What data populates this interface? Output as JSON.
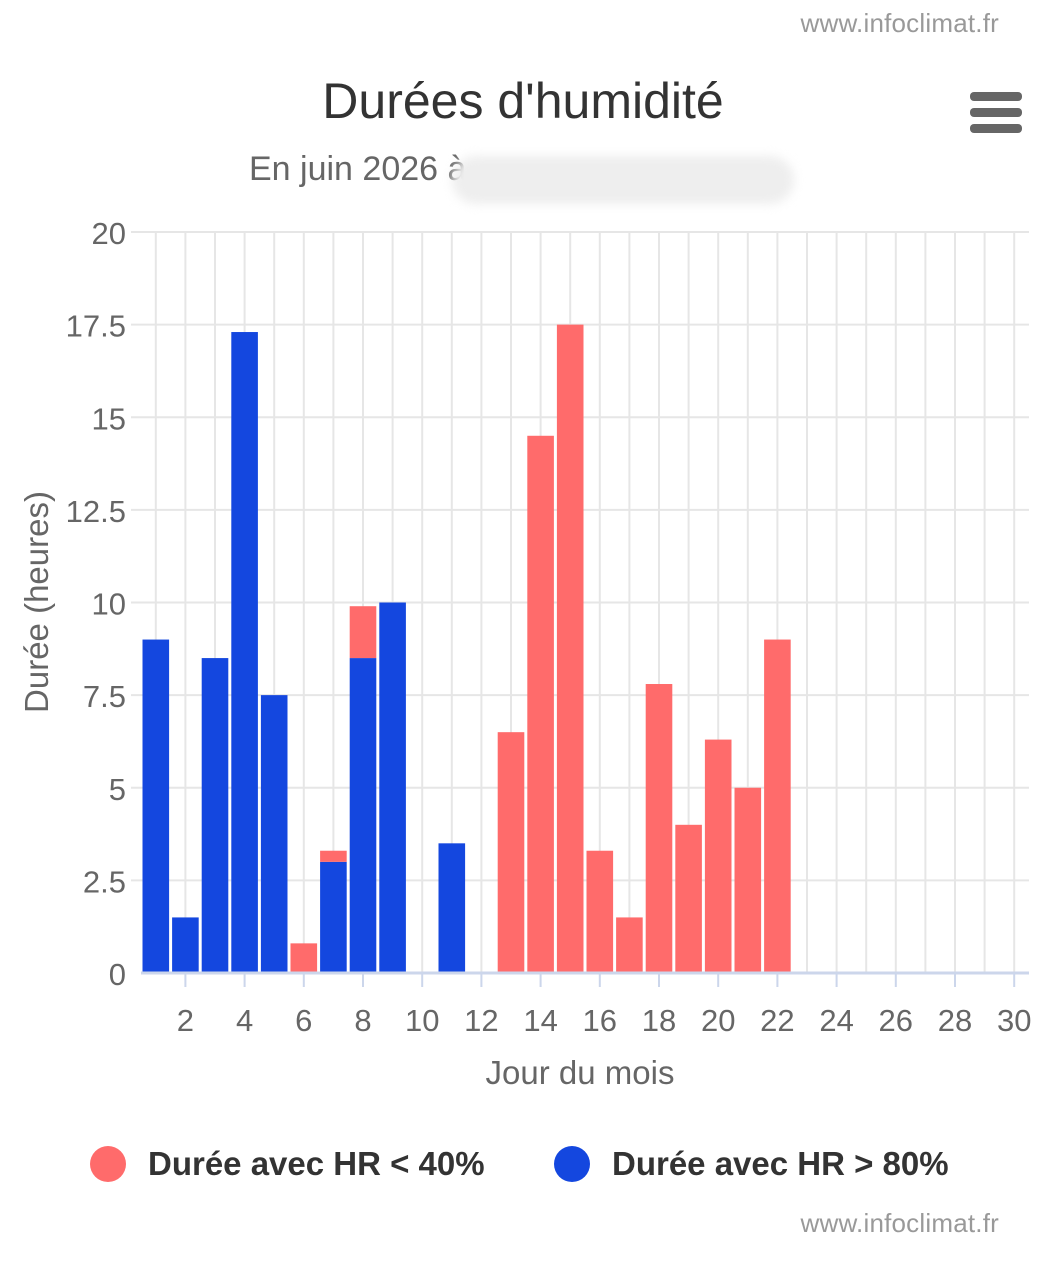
{
  "credits": {
    "top": "www.infoclimat.fr",
    "bottom": "www.infoclimat.fr"
  },
  "menu": {
    "icon": "hamburger-menu-icon"
  },
  "chart_data": {
    "type": "bar",
    "stacked": true,
    "title": "Durées d'humidité",
    "subtitle": "En juin 2026 à",
    "xlabel": "Jour du mois",
    "ylabel": "Durée (heures)",
    "xlim": [
      0.5,
      30.5
    ],
    "ylim": [
      0,
      20
    ],
    "x_ticks": [
      2,
      4,
      6,
      8,
      10,
      12,
      14,
      16,
      18,
      20,
      22,
      24,
      26,
      28,
      30
    ],
    "y_ticks": [
      {
        "value": 0,
        "label": "0"
      },
      {
        "value": 2.5,
        "label": "2.5"
      },
      {
        "value": 5,
        "label": "5"
      },
      {
        "value": 7.5,
        "label": "7.5"
      },
      {
        "value": 10,
        "label": "10"
      },
      {
        "value": 12.5,
        "label": "12.5"
      },
      {
        "value": 15,
        "label": "15"
      },
      {
        "value": 17.5,
        "label": "17.5"
      },
      {
        "value": 20,
        "label": "20"
      }
    ],
    "grid": true,
    "legend_position": "bottom",
    "x": [
      1,
      2,
      3,
      4,
      5,
      6,
      7,
      8,
      9,
      10,
      11,
      12,
      13,
      14,
      15,
      16,
      17,
      18,
      19,
      20,
      21,
      22,
      23,
      24,
      25,
      26,
      27,
      28,
      29,
      30
    ],
    "series": [
      {
        "name": "Durée avec HR > 80%",
        "color": "#1447df",
        "values": [
          9,
          1.5,
          8.5,
          17.3,
          7.5,
          0,
          3,
          8.5,
          10,
          0,
          3.5,
          0,
          0,
          0,
          0,
          0,
          0,
          0,
          0,
          0,
          0,
          0,
          0,
          0,
          0,
          0,
          0,
          0,
          0,
          0
        ]
      },
      {
        "name": "Durée avec HR < 40%",
        "color": "#ff6b6b",
        "values": [
          0,
          0,
          0,
          0,
          0,
          0.8,
          0.3,
          1.4,
          0,
          0,
          0,
          0,
          6.5,
          14.5,
          17.5,
          3.3,
          1.5,
          7.8,
          4,
          6.3,
          5,
          9,
          0,
          0,
          0,
          0,
          0,
          0,
          0,
          0
        ]
      }
    ]
  }
}
